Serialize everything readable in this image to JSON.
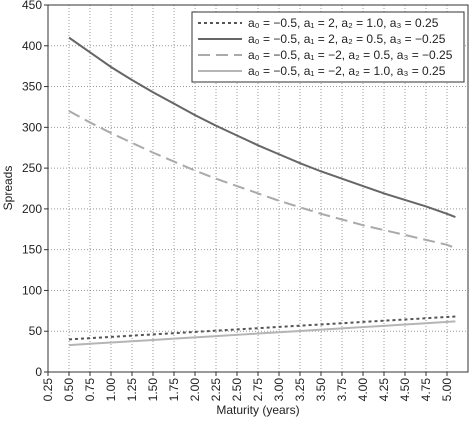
{
  "chart_data": {
    "type": "line",
    "x": [
      0.5,
      0.75,
      1.0,
      1.25,
      1.5,
      1.75,
      2.0,
      2.25,
      2.5,
      2.75,
      3.0,
      3.25,
      3.5,
      3.75,
      4.0,
      4.25,
      4.5,
      4.75,
      5.0,
      5.1
    ],
    "series": [
      {
        "name": "a₀ = −0.5, a₁ = 2, a₂ = 1.0, a₃ = 0.25",
        "color": "#555555",
        "dash": "3,3",
        "values": [
          40,
          41.5,
          43,
          44.6,
          46.1,
          47.6,
          49.2,
          50.7,
          52.2,
          53.7,
          55.3,
          56.8,
          58.3,
          59.8,
          61.4,
          62.9,
          64.4,
          65.9,
          67.5,
          68
        ]
      },
      {
        "name": "a₀ = −0.5, a₁ = 2, a₂ = 0.5, a₃ = −0.25",
        "color": "#666666",
        "dash": "none",
        "values": [
          410,
          392,
          374,
          358,
          343,
          329,
          315,
          302,
          290,
          278,
          267,
          256,
          246,
          237,
          228,
          219,
          211,
          203,
          194,
          190
        ]
      },
      {
        "name": "a₀ = −0.5, a₁ = −2, a₂ = 0.5, a₃ = −0.25",
        "color": "#aaaaaa",
        "dash": "12,6",
        "values": [
          320,
          306,
          293,
          281,
          269,
          258,
          247,
          237,
          228,
          219,
          210,
          202,
          194,
          187,
          180,
          174,
          168,
          162,
          156,
          152
        ]
      },
      {
        "name": "a₀ = −0.5, a₁ = −2, a₂ = 1.0, a₃ = 0.25",
        "color": "#b5b5b5",
        "dash": "none",
        "values": [
          33,
          34.6,
          36.2,
          37.7,
          39.3,
          40.9,
          42.5,
          44,
          45.6,
          47.2,
          48.8,
          50.3,
          51.9,
          53.5,
          55.1,
          56.6,
          58.2,
          59.8,
          61.4,
          62
        ]
      }
    ],
    "xlabel": "Maturity (years)",
    "ylabel": "Spreads",
    "xlim": [
      0.25,
      5.25
    ],
    "ylim": [
      0,
      450
    ],
    "xticks": [
      0.25,
      {
        "value": 0.5,
        "label": "0.50"
      },
      0.75,
      {
        "value": 1,
        "label": "1.00"
      },
      1.25,
      {
        "value": 1.5,
        "label": "1.50"
      },
      1.75,
      {
        "value": 2,
        "label": "2.00"
      },
      2.25,
      {
        "value": 2.5,
        "label": "2.50"
      },
      2.75,
      {
        "value": 3,
        "label": "3.00"
      },
      3.25,
      {
        "value": 3.5,
        "label": "3.50"
      },
      3.75,
      {
        "value": 4,
        "label": "4.00"
      },
      4.25,
      {
        "value": 4.5,
        "label": "4.50"
      },
      4.75,
      {
        "value": 5,
        "label": "5.00"
      }
    ],
    "yticks": [
      0,
      50,
      100,
      150,
      200,
      250,
      300,
      350,
      400,
      450
    ],
    "grid": true,
    "legend": "upper right"
  }
}
